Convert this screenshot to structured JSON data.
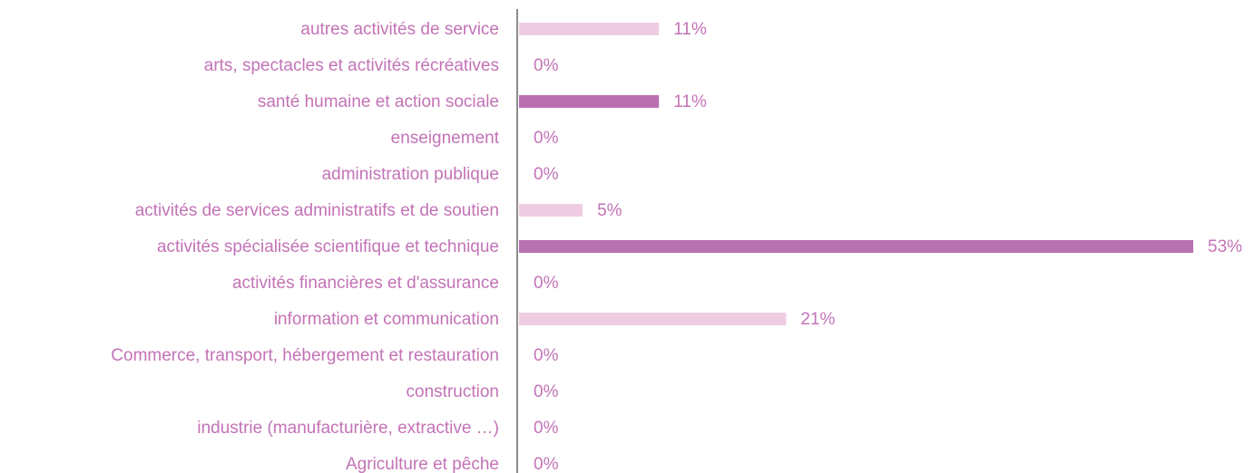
{
  "chart_data": {
    "type": "barh",
    "categories": [
      "autres activités de service",
      "arts, spectacles et activités récréatives",
      "santé humaine et action sociale",
      "enseignement",
      "administration publique",
      "activités de services administratifs et de soutien",
      "activités spécialisée scientifique et technique",
      "activités financières et d'assurance",
      "information et communication",
      "Commerce, transport, hébergement et restauration",
      "construction",
      "industrie (manufacturière, extractive …)",
      "Agriculture et pêche"
    ],
    "values": [
      11,
      0,
      11,
      0,
      0,
      5,
      53,
      0,
      21,
      0,
      0,
      0,
      0
    ],
    "value_labels": [
      "11%",
      "0%",
      "11%",
      "0%",
      "0%",
      "5%",
      "53%",
      "0%",
      "21%",
      "0%",
      "0%",
      "0%",
      "0%"
    ],
    "colors": [
      "#f0cce3",
      "#f0cce3",
      "#b970b1",
      "#f0cce3",
      "#f0cce3",
      "#f0cce3",
      "#b970b1",
      "#f0cce3",
      "#f0cce3",
      "#f0cce3",
      "#f0cce3",
      "#f0cce3",
      "#f0cce3"
    ]
  }
}
